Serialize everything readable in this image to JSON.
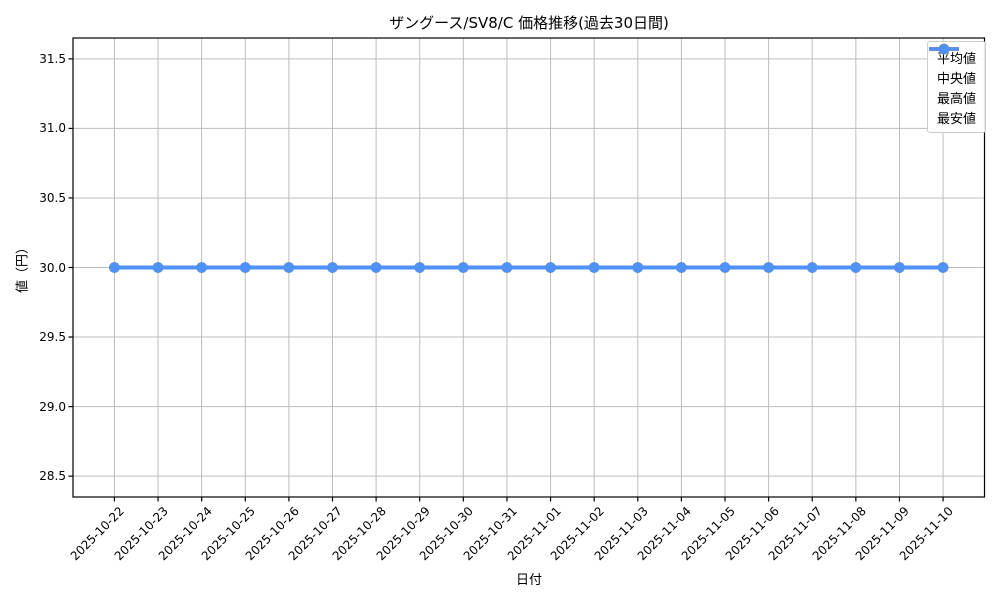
{
  "chart_data": {
    "type": "line",
    "title": "ザングース/SV8/C 価格推移(過去30日間)",
    "xlabel": "日付",
    "ylabel": "値（円）",
    "x": [
      "2025-10-22",
      "2025-10-23",
      "2025-10-24",
      "2025-10-25",
      "2025-10-26",
      "2025-10-27",
      "2025-10-28",
      "2025-10-29",
      "2025-10-30",
      "2025-10-31",
      "2025-11-01",
      "2025-11-02",
      "2025-11-03",
      "2025-11-04",
      "2025-11-05",
      "2025-11-06",
      "2025-11-07",
      "2025-11-08",
      "2025-11-09",
      "2025-11-10"
    ],
    "series": [
      {
        "name": "平均値",
        "color": "#2dbd63",
        "values": [
          30.0,
          30.0,
          30.0,
          30.0,
          30.0,
          30.0,
          30.0,
          30.0,
          30.0,
          30.0,
          30.0,
          30.0,
          30.0,
          30.0,
          30.0,
          30.0,
          30.0,
          30.0,
          30.0,
          30.0
        ]
      },
      {
        "name": "中央値",
        "color": "#ffa413",
        "values": [
          30.0,
          30.0,
          30.0,
          30.0,
          30.0,
          30.0,
          30.0,
          30.0,
          30.0,
          30.0,
          30.0,
          30.0,
          30.0,
          30.0,
          30.0,
          30.0,
          30.0,
          30.0,
          30.0,
          30.0
        ]
      },
      {
        "name": "最高値",
        "color": "#f2483e",
        "values": [
          30.0,
          30.0,
          30.0,
          30.0,
          30.0,
          30.0,
          30.0,
          30.0,
          30.0,
          30.0,
          30.0,
          30.0,
          30.0,
          30.0,
          30.0,
          30.0,
          30.0,
          30.0,
          30.0,
          30.0
        ]
      },
      {
        "name": "最安値",
        "color": "#4e92f7",
        "values": [
          30.0,
          30.0,
          30.0,
          30.0,
          30.0,
          30.0,
          30.0,
          30.0,
          30.0,
          30.0,
          30.0,
          30.0,
          30.0,
          30.0,
          30.0,
          30.0,
          30.0,
          30.0,
          30.0,
          30.0
        ]
      }
    ],
    "yticks": [
      28.5,
      29.0,
      29.5,
      30.0,
      30.5,
      31.0,
      31.5
    ],
    "ylim": [
      28.35,
      31.65
    ],
    "grid": true,
    "legend_position": "upper-right",
    "marker": "circle",
    "colors": {
      "grid": "#bdbdbd",
      "spine": "#000000",
      "text": "#000000"
    }
  }
}
